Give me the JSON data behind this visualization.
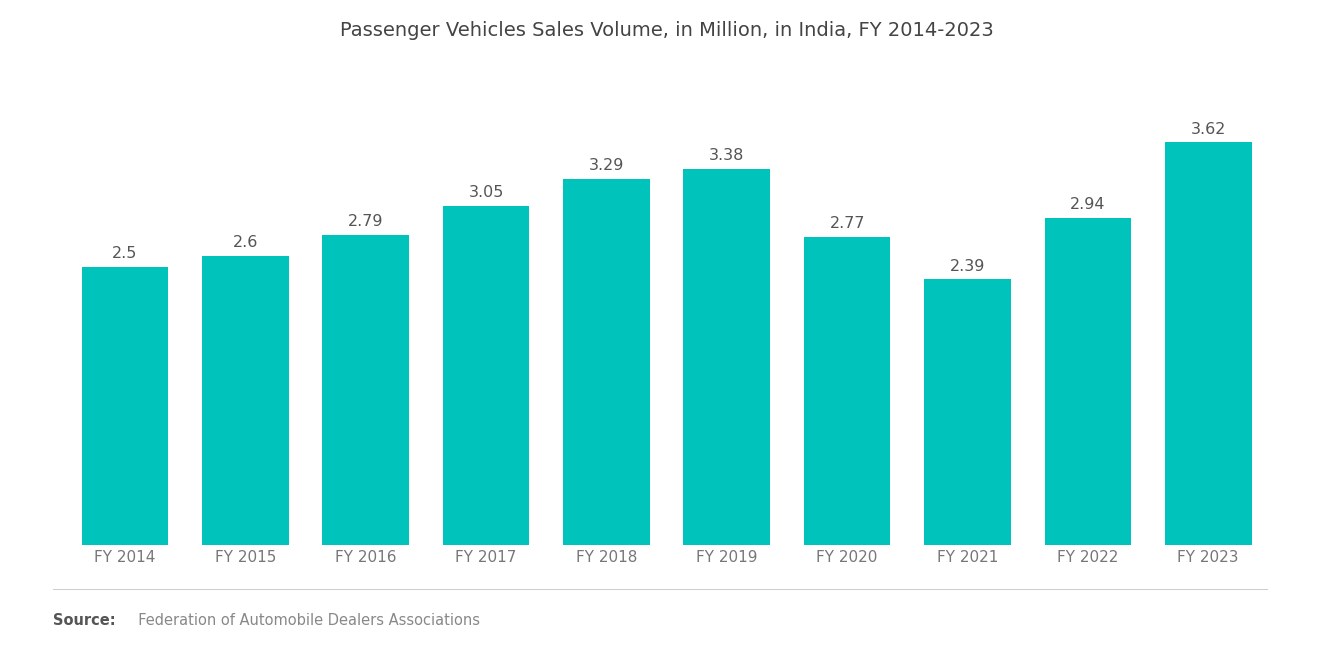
{
  "title": "Passenger Vehicles Sales Volume, in Million, in India, FY 2014-2023",
  "categories": [
    "FY 2014",
    "FY 2015",
    "FY 2016",
    "FY 2017",
    "FY 2018",
    "FY 2019",
    "FY 2020",
    "FY 2021",
    "FY 2022",
    "FY 2023"
  ],
  "values": [
    2.5,
    2.6,
    2.79,
    3.05,
    3.29,
    3.38,
    2.77,
    2.39,
    2.94,
    3.62
  ],
  "bar_color": "#00C4BC",
  "background_color": "#ffffff",
  "title_fontsize": 14,
  "tick_fontsize": 11,
  "value_fontsize": 11.5,
  "value_color": "#555555",
  "tick_color": "#777777",
  "source_bold": "Source:",
  "source_text": "  Federation of Automobile Dealers Associations",
  "source_fontsize": 10.5,
  "bar_width": 0.72,
  "ylim_max": 4.3
}
